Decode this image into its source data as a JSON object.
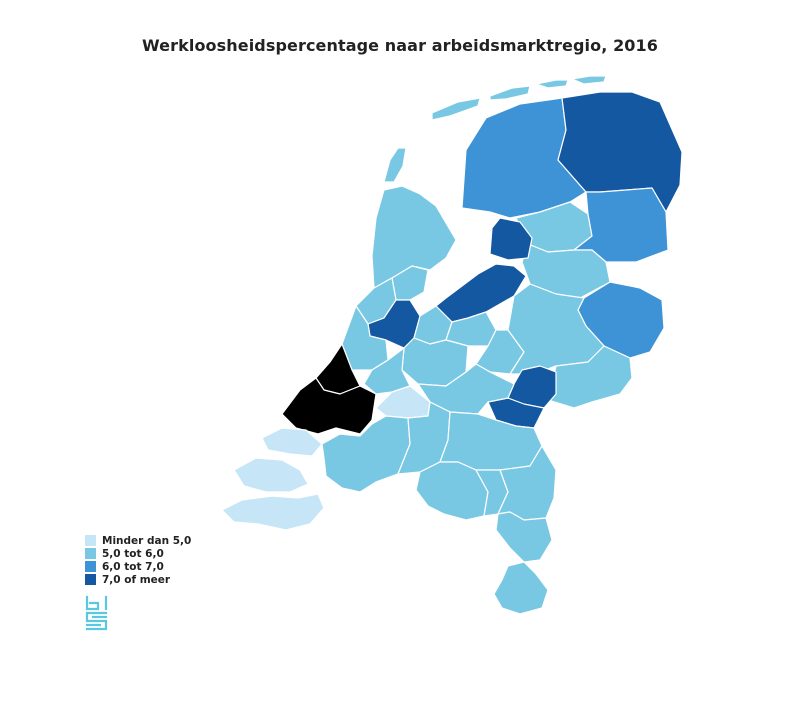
{
  "title": "Werkloosheidspercentage naar arbeidsmarktregio, 2016",
  "legend": [
    {
      "label": "Minder dan 5,0",
      "color": "#c6e6f8"
    },
    {
      "label": "5,0 tot 6,0",
      "color": "#78c8e4"
    },
    {
      "label": "6,0 tot 7,0",
      "color": "#3d93d5"
    },
    {
      "label": "7,0 of meer",
      "color": "#1458a1"
    }
  ],
  "colors": {
    "background": "#ffffff",
    "border": "#ffffff",
    "logo": "#5bc8e0"
  },
  "logo": {
    "name": "cbs",
    "text": "cbs"
  }
}
